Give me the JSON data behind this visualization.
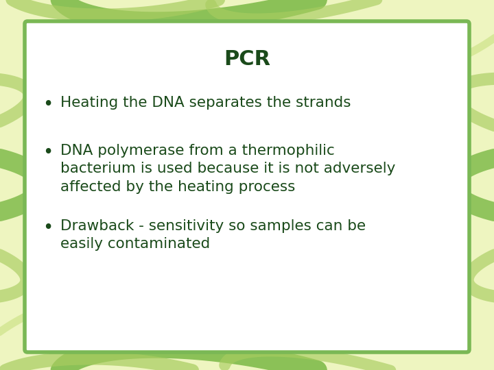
{
  "title": "PCR",
  "title_color": "#1a4a1a",
  "title_fontsize": 22,
  "title_fontweight": "bold",
  "bullet_points": [
    "Heating the DNA separates the strands",
    "DNA polymerase from a thermophilic\nbacterium is used because it is not adversely\naffected by the heating process",
    "Drawback - sensitivity so samples can be\neasily contaminated"
  ],
  "bullet_color": "#1a4a1a",
  "bullet_fontsize": 15.5,
  "background_outer": "#eef5c0",
  "background_inner": "#ffffff",
  "border_color": "#7ab855",
  "border_linewidth": 4.0,
  "leaf_color_dark": "#7ab845",
  "leaf_color_mid": "#a8cc60",
  "leaf_color_light": "#c8e080",
  "fig_width": 7.2,
  "fig_height": 5.4
}
